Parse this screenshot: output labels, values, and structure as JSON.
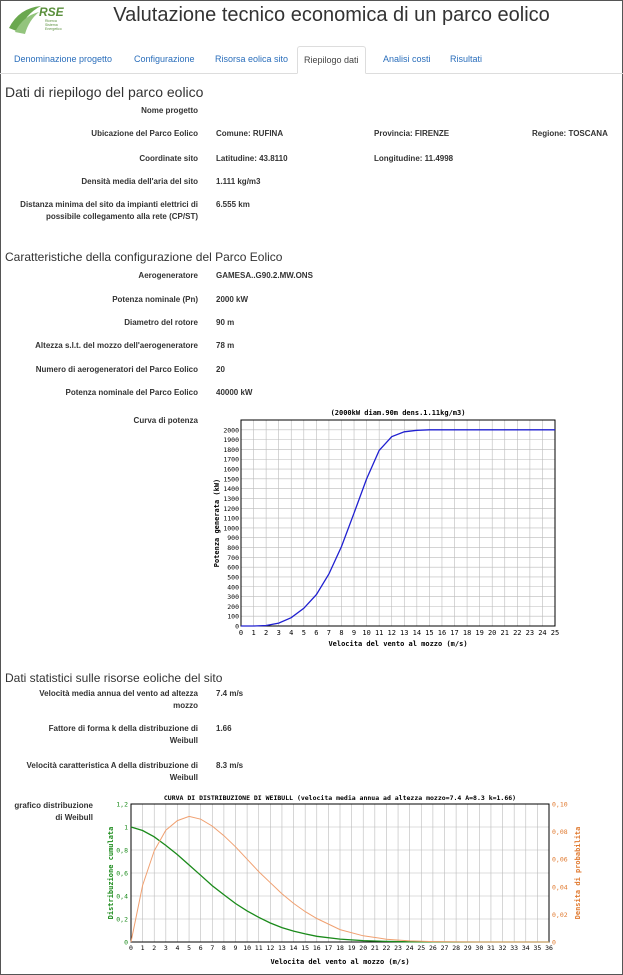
{
  "app": {
    "title": "Valutazione tecnico economica di un parco eolico",
    "logo_text": "RSE",
    "logo_subtext": [
      "Ricerca",
      "Sistema",
      "Energetico"
    ]
  },
  "tabs": [
    {
      "label": "Denominazione progetto",
      "active": false
    },
    {
      "label": "Configurazione",
      "active": false
    },
    {
      "label": "Risorsa eolica sito",
      "active": false
    },
    {
      "label": "Riepilogo dati",
      "active": true
    },
    {
      "label": "Analisi costi",
      "active": false
    },
    {
      "label": "Risultati",
      "active": false
    }
  ],
  "summary": {
    "title": "Dati di riepilogo del parco eolico",
    "nome_progetto_label": "Nome progetto",
    "ubicazione_label": "Ubicazione del Parco Eolico",
    "comune": "Comune: RUFINA",
    "provincia": "Provincia: FIRENZE",
    "regione": "Regione: TOSCANA",
    "coordinate_label": "Coordinate sito",
    "latitudine": "Latitudine: 43.8110",
    "longitudine": "Longitudine: 11.4998",
    "densita_label": "Densità media dell'aria del sito",
    "densita_value": "1.111 kg/m3",
    "distanza_label_1": "Distanza minima del sito da impianti elettrici di",
    "distanza_label_2": "possibile collegamento alla rete (CP/ST)",
    "distanza_value": "6.555 km"
  },
  "config": {
    "title": "Caratteristiche della configurazione del Parco Eolico",
    "aerogeneratore_label": "Aerogeneratore",
    "aerogeneratore_value": "GAMESA..G90.2.MW.ONS",
    "potenza_nom_label": "Potenza nominale (Pn)",
    "potenza_nom_value": "2000 kW",
    "diametro_label": "Diametro del rotore",
    "diametro_value": "90 m",
    "altezza_label": "Altezza s.l.t. del mozzo dell'aerogeneratore",
    "altezza_value": "78 m",
    "numero_label": "Numero di aerogeneratori del Parco Eolico",
    "numero_value": "20",
    "potenza_parco_label": "Potenza nominale del Parco Eolico",
    "potenza_parco_value": "40000 kW",
    "curva_label": "Curva di potenza"
  },
  "stats": {
    "title": "Dati statistici sulle risorse eoliche del sito",
    "vel_media_label_1": "Velocità media annua del vento ad altezza",
    "vel_media_label_2": "mozzo",
    "vel_media_value": "7.4 m/s",
    "forma_label_1": "Fattore di forma k della distribuzione di",
    "forma_label_2": "Weibull",
    "forma_value": "1.66",
    "vel_car_label_1": "Velocità caratteristica A della distribuzione di",
    "vel_car_label_2": "Weibull",
    "vel_car_value": "8.3 m/s",
    "grafico_label_1": "grafico distribuzione",
    "grafico_label_2": "di Weibull"
  },
  "chart_data": [
    {
      "type": "line",
      "title": "(2000kW  diam.90m  dens.1.11kg/m3)",
      "xlabel": "Velocita del vento al mozzo (m/s)",
      "ylabel": "Potenza generata (kW)",
      "xlim": [
        0,
        25
      ],
      "ylim": [
        0,
        2100
      ],
      "xticks": [
        0,
        1,
        2,
        3,
        4,
        5,
        6,
        7,
        8,
        9,
        10,
        11,
        12,
        13,
        14,
        15,
        16,
        17,
        18,
        19,
        20,
        21,
        22,
        23,
        24,
        25
      ],
      "yticks": [
        0,
        100,
        200,
        300,
        400,
        500,
        600,
        700,
        800,
        900,
        1000,
        1100,
        1200,
        1300,
        1400,
        1500,
        1600,
        1700,
        1800,
        1900,
        2000
      ],
      "grid": true,
      "series": [
        {
          "color": "#2020d0",
          "x": [
            0,
            1,
            2,
            3,
            4,
            5,
            6,
            7,
            8,
            9,
            10,
            11,
            12,
            13,
            14,
            15,
            16,
            17,
            18,
            19,
            20,
            21,
            22,
            23,
            24,
            25
          ],
          "y": [
            0,
            0,
            5,
            30,
            85,
            180,
            320,
            530,
            810,
            1150,
            1500,
            1790,
            1930,
            1980,
            1995,
            2000,
            2000,
            2000,
            2000,
            2000,
            2000,
            2000,
            2000,
            2000,
            2000,
            2000
          ]
        }
      ]
    },
    {
      "type": "line",
      "title": "CURVA DI DISTRIBUZIONE DI WEIBULL  (velocita media annua ad altezza mozzo=7.4  A=8.3  k=1.66)",
      "xlabel": "Velocita del vento al mozzo (m/s)",
      "ylabel": "Distribuzione cumulata",
      "y2label": "Densita di probabilita",
      "xlim": [
        0,
        36
      ],
      "ylim": [
        0,
        1.2
      ],
      "y2lim": [
        0,
        0.1
      ],
      "xticks": [
        0,
        1,
        2,
        3,
        4,
        5,
        6,
        7,
        8,
        9,
        10,
        11,
        12,
        13,
        14,
        15,
        16,
        17,
        18,
        19,
        20,
        21,
        22,
        23,
        24,
        25,
        26,
        27,
        28,
        29,
        30,
        31,
        32,
        33,
        34,
        35,
        36
      ],
      "yticks": [
        "0",
        "0,2",
        "0,4",
        "0,6",
        "0,8",
        "1",
        "1,2"
      ],
      "y2ticks": [
        "0",
        "0,02",
        "0,04",
        "0,06",
        "0,08",
        "0,10"
      ],
      "grid": true,
      "series": [
        {
          "name": "Distribuzione cumulata",
          "axis": "left",
          "color": "#1a8a1a",
          "x": [
            0,
            1,
            2,
            3,
            4,
            5,
            6,
            7,
            8,
            9,
            10,
            11,
            12,
            13,
            14,
            15,
            16,
            18,
            20,
            22,
            24,
            26,
            28,
            30,
            33,
            36
          ],
          "y": [
            1.0,
            0.97,
            0.915,
            0.84,
            0.76,
            0.67,
            0.58,
            0.49,
            0.41,
            0.335,
            0.27,
            0.215,
            0.165,
            0.125,
            0.095,
            0.07,
            0.05,
            0.025,
            0.012,
            0.005,
            0.002,
            0.001,
            0,
            0,
            0,
            0
          ]
        },
        {
          "name": "Densita di probabilita",
          "axis": "right",
          "color": "#f0a070",
          "x": [
            0,
            1,
            2,
            3,
            4,
            5,
            6,
            7,
            8,
            9,
            10,
            11,
            12,
            13,
            14,
            15,
            16,
            18,
            20,
            22,
            24,
            26,
            28,
            30,
            33,
            36
          ],
          "y": [
            0,
            0.041,
            0.066,
            0.081,
            0.088,
            0.091,
            0.089,
            0.084,
            0.077,
            0.069,
            0.06,
            0.051,
            0.043,
            0.035,
            0.028,
            0.022,
            0.017,
            0.009,
            0.0045,
            0.002,
            0.0008,
            0.0003,
            0.0001,
            0,
            0,
            0
          ]
        }
      ]
    }
  ]
}
